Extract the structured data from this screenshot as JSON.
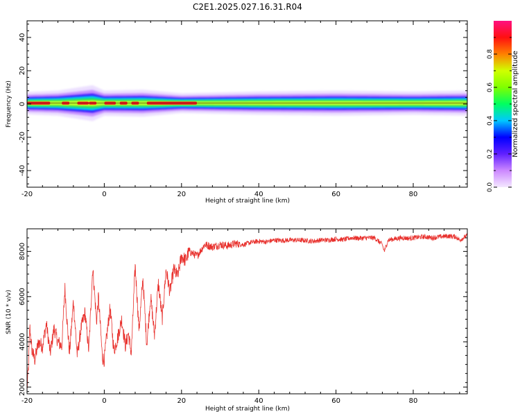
{
  "title": "C2E1.2025.027.16.31.R04",
  "chart_data": [
    {
      "type": "heatmap",
      "xlabel": "Height of straight line (km)",
      "ylabel": "Frequency (Hz)",
      "xlim": [
        -20,
        94
      ],
      "ylim": [
        -50,
        50
      ],
      "x_ticks": [
        -20,
        0,
        20,
        40,
        60,
        80
      ],
      "y_ticks": [
        40,
        20,
        0,
        -20,
        -40
      ],
      "grid": false,
      "band_center_hz": 0.5,
      "band_half_width_hz": [
        [
          -20,
          2.5
        ],
        [
          -12,
          2.8
        ],
        [
          -3,
          4.0
        ],
        [
          0,
          2.8
        ],
        [
          10,
          3.0
        ],
        [
          20,
          2.2
        ],
        [
          40,
          2.6
        ],
        [
          60,
          2.8
        ],
        [
          80,
          2.6
        ],
        [
          94,
          2.8
        ]
      ],
      "red_core_segments": [
        [
          -20,
          -14
        ],
        [
          -11,
          -9
        ],
        [
          -7,
          -4
        ],
        [
          -4,
          -2
        ],
        [
          0,
          3
        ],
        [
          4,
          6
        ],
        [
          7,
          9
        ],
        [
          11,
          24
        ]
      ],
      "colorbar": {
        "label": "Normalized spectral amplitude",
        "range": [
          0,
          1
        ],
        "ticks": [
          "0.0",
          "0.2",
          "0.4",
          "0.6",
          "0.8"
        ],
        "colormap": [
          "#f4e8ff",
          "#cc88ff",
          "#6020ff",
          "#0000ff",
          "#00c8ff",
          "#00ff60",
          "#7fff00",
          "#d0ff00",
          "#ff8000",
          "#ff1010",
          "#ff1080"
        ]
      }
    },
    {
      "type": "line",
      "xlabel": "Height of straight line (km)",
      "ylabel": "SNR (10 * v/v)",
      "xlim": [
        -20,
        94
      ],
      "ylim": [
        1700,
        9000
      ],
      "x_ticks": [
        -20,
        0,
        20,
        40,
        60,
        80
      ],
      "y_ticks": [
        2000,
        4000,
        6000,
        8000
      ],
      "grid": false,
      "series": [
        {
          "color": "#e8302c",
          "x": [
            -20.0,
            -19.6,
            -19.3,
            -18.8,
            -18.0,
            -17.0,
            -16.0,
            -15.0,
            -14.0,
            -13.0,
            -12.0,
            -11.0,
            -10.2,
            -9.6,
            -9.0,
            -8.0,
            -7.0,
            -6.0,
            -5.0,
            -4.0,
            -3.0,
            -2.0,
            -1.5,
            -0.5,
            0.0,
            0.6,
            1.5,
            2.5,
            3.5,
            4.5,
            5.5,
            6.2,
            7.0,
            8.0,
            9.0,
            10.0,
            11.0,
            12.0,
            13.0,
            14.0,
            15.0,
            16.0,
            17.0,
            18.0,
            19.0,
            20.0,
            21.0,
            22.0,
            24.0,
            26.0,
            28.0,
            30.0,
            32.0,
            34.0,
            36.0,
            38.0,
            40.0,
            42.0,
            44.0,
            46.0,
            48.0,
            50.0,
            52.0,
            54.0,
            56.0,
            58.0,
            60.0,
            62.0,
            64.0,
            66.0,
            68.0,
            70.0,
            72.0,
            72.5,
            73.5,
            75.0,
            77.0,
            79.0,
            81.0,
            83.0,
            85.0,
            87.0,
            89.0,
            91.0,
            92.0,
            94.0
          ],
          "values": [
            1900,
            3000,
            4700,
            3700,
            3200,
            4000,
            3800,
            4800,
            3500,
            4600,
            4000,
            3800,
            6400,
            4800,
            3500,
            5800,
            3400,
            4600,
            5300,
            3600,
            7300,
            4900,
            6000,
            3300,
            3200,
            4200,
            5500,
            3600,
            4200,
            5000,
            3800,
            4400,
            3500,
            7400,
            4500,
            6800,
            3900,
            6000,
            4300,
            6600,
            5000,
            7200,
            6200,
            7200,
            6900,
            7800,
            7600,
            8000,
            7800,
            8300,
            8200,
            8300,
            8250,
            8350,
            8300,
            8400,
            8450,
            8420,
            8500,
            8480,
            8500,
            8500,
            8480,
            8450,
            8500,
            8500,
            8550,
            8520,
            8600,
            8580,
            8600,
            8600,
            8300,
            8000,
            8500,
            8550,
            8600,
            8580,
            8620,
            8650,
            8600,
            8650,
            8680,
            8650,
            8500,
            8700
          ]
        }
      ]
    }
  ]
}
